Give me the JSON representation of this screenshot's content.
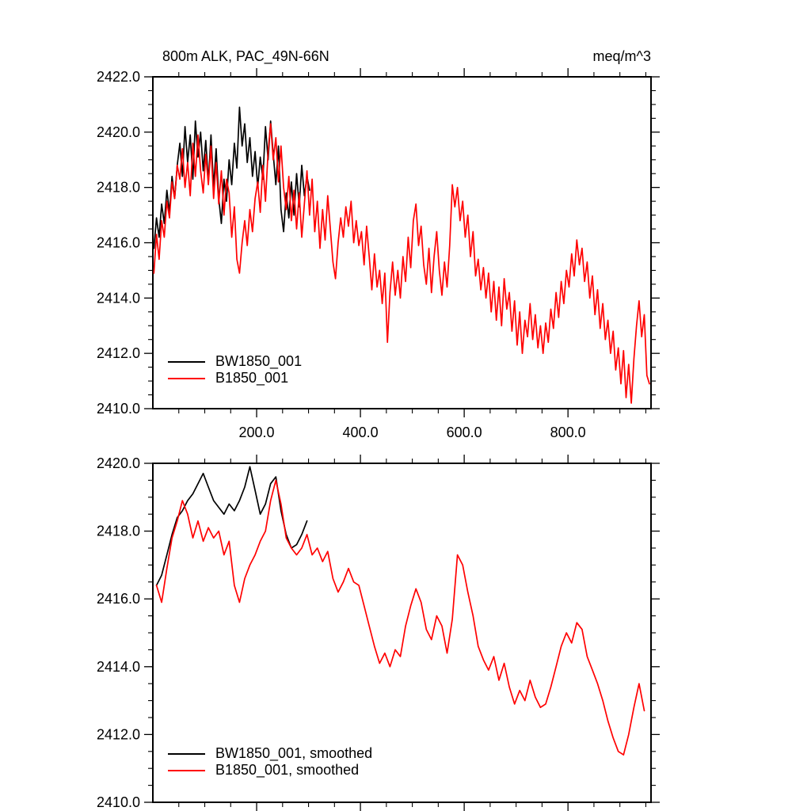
{
  "chart_data": [
    {
      "type": "line",
      "title": "800m ALK, PAC_49N-66N",
      "units_label": "meq/m^3",
      "grid": false,
      "legend_position": "lower-left-inside",
      "xlim": [
        0,
        960
      ],
      "ylim": [
        2410.0,
        2422.0
      ],
      "xticks": [
        200,
        400,
        600,
        800
      ],
      "xtick_labels": [
        "200.0",
        "400.0",
        "600.0",
        "800.0"
      ],
      "xtick_minor_step": 50,
      "ytick_step": 2.0,
      "ytick_minor_step": 0.5,
      "ytick_labels": [
        "2410.0",
        "2412.0",
        "2414.0",
        "2416.0",
        "2418.0",
        "2420.0",
        "2422.0"
      ],
      "show_x_labels": true,
      "legend": {
        "entries": [
          {
            "label": "BW1850_001",
            "color": "#000000"
          },
          {
            "label": "B1850_001",
            "color": "#ff0000"
          }
        ]
      },
      "series": [
        {
          "name": "BW1850_001",
          "color": "#000000",
          "x_start": 2,
          "x_step": 5,
          "values": [
            2415.8,
            2416.9,
            2416.2,
            2417.4,
            2416.7,
            2417.9,
            2417.1,
            2418.4,
            2417.6,
            2418.8,
            2419.6,
            2418.4,
            2420.2,
            2418.9,
            2419.9,
            2418.3,
            2420.4,
            2419.1,
            2420.0,
            2418.6,
            2419.7,
            2418.2,
            2419.9,
            2418.0,
            2419.4,
            2417.6,
            2416.7,
            2418.3,
            2417.5,
            2419.0,
            2418.1,
            2419.6,
            2418.7,
            2420.9,
            2419.5,
            2420.3,
            2418.9,
            2419.8,
            2418.4,
            2419.3,
            2418.0,
            2419.1,
            2418.3,
            2420.2,
            2419.0,
            2420.4,
            2419.2,
            2418.1,
            2419.5,
            2417.2,
            2416.4,
            2417.8,
            2416.9,
            2418.2,
            2417.0,
            2418.5,
            2417.3,
            2418.8,
            2417.7,
            2418.4,
            2417.9
          ]
        },
        {
          "name": "B1850_001",
          "color": "#ff0000",
          "x_start": 2,
          "x_step": 5,
          "values": [
            2414.9,
            2416.3,
            2415.4,
            2416.8,
            2416.2,
            2417.5,
            2416.9,
            2418.2,
            2417.6,
            2418.8,
            2418.3,
            2419.4,
            2418.0,
            2418.9,
            2417.7,
            2419.6,
            2418.4,
            2419.9,
            2418.6,
            2417.8,
            2419.2,
            2418.1,
            2419.5,
            2417.6,
            2418.9,
            2417.4,
            2418.6,
            2417.0,
            2418.3,
            2417.8,
            2416.2,
            2417.3,
            2415.4,
            2414.9,
            2416.0,
            2416.8,
            2415.9,
            2417.2,
            2416.4,
            2417.6,
            2418.2,
            2417.1,
            2418.8,
            2417.5,
            2419.3,
            2420.3,
            2419.0,
            2419.8,
            2418.2,
            2419.5,
            2418.0,
            2417.2,
            2418.4,
            2416.8,
            2417.9,
            2416.5,
            2417.8,
            2416.2,
            2417.4,
            2418.6,
            2417.0,
            2418.3,
            2416.4,
            2417.5,
            2415.8,
            2417.2,
            2416.1,
            2417.7,
            2416.5,
            2415.3,
            2414.7,
            2416.0,
            2416.9,
            2416.2,
            2417.3,
            2416.6,
            2417.5,
            2416.0,
            2416.8,
            2415.9,
            2416.4,
            2415.2,
            2416.6,
            2415.5,
            2414.3,
            2415.6,
            2414.4,
            2415.0,
            2413.8,
            2414.9,
            2412.4,
            2414.2,
            2415.3,
            2414.1,
            2415.0,
            2414.0,
            2415.5,
            2414.6,
            2416.2,
            2415.1,
            2416.8,
            2417.4,
            2415.9,
            2416.6,
            2415.2,
            2414.5,
            2415.8,
            2414.2,
            2415.5,
            2416.4,
            2415.0,
            2414.1,
            2415.3,
            2414.4,
            2415.9,
            2418.1,
            2417.3,
            2418.0,
            2416.8,
            2417.5,
            2416.2,
            2417.0,
            2415.5,
            2416.4,
            2414.8,
            2415.4,
            2414.3,
            2415.1,
            2414.0,
            2414.9,
            2413.5,
            2414.6,
            2413.2,
            2414.4,
            2413.0,
            2414.7,
            2413.6,
            2414.2,
            2412.8,
            2413.9,
            2412.3,
            2413.5,
            2412.0,
            2413.2,
            2412.6,
            2413.8,
            2412.5,
            2413.4,
            2412.2,
            2413.0,
            2412.0,
            2413.1,
            2412.4,
            2413.6,
            2412.9,
            2414.2,
            2413.3,
            2414.6,
            2413.8,
            2415.0,
            2414.4,
            2415.6,
            2414.8,
            2416.1,
            2415.2,
            2415.8,
            2414.6,
            2415.3,
            2414.0,
            2414.8,
            2413.4,
            2414.3,
            2412.9,
            2413.8,
            2412.5,
            2413.2,
            2412.0,
            2412.8,
            2411.4,
            2412.2,
            2410.9,
            2412.1,
            2410.4,
            2411.6,
            2410.2,
            2411.8,
            2413.0,
            2413.9,
            2412.6,
            2413.4,
            2411.2,
            2410.9
          ]
        }
      ]
    },
    {
      "type": "line",
      "grid": false,
      "legend_position": "lower-left-inside",
      "xlim": [
        0,
        960
      ],
      "ylim": [
        2410.0,
        2420.0
      ],
      "xticks": [
        200,
        400,
        600,
        800
      ],
      "xtick_minor_step": 50,
      "ytick_step": 2.0,
      "ytick_minor_step": 0.5,
      "ytick_labels": [
        "2410.0",
        "2412.0",
        "2414.0",
        "2416.0",
        "2418.0",
        "2420.0"
      ],
      "show_x_labels": false,
      "legend": {
        "entries": [
          {
            "label": "BW1850_001, smoothed",
            "color": "#000000"
          },
          {
            "label": "B1850_001, smoothed",
            "color": "#ff0000"
          }
        ]
      },
      "series": [
        {
          "name": "BW1850_001, smoothed",
          "color": "#000000",
          "x_start": 7,
          "x_step": 10,
          "values": [
            2416.4,
            2416.7,
            2417.3,
            2417.9,
            2418.4,
            2418.6,
            2418.9,
            2419.1,
            2419.4,
            2419.7,
            2419.3,
            2418.9,
            2418.7,
            2418.5,
            2418.8,
            2418.6,
            2418.9,
            2419.3,
            2419.9,
            2419.2,
            2418.5,
            2418.8,
            2419.4,
            2419.6,
            2418.6,
            2417.9,
            2417.5,
            2417.6,
            2417.9,
            2418.3
          ]
        },
        {
          "name": "B1850_001, smoothed",
          "color": "#ff0000",
          "x_start": 7,
          "x_step": 10,
          "values": [
            2416.4,
            2415.9,
            2416.9,
            2417.8,
            2418.3,
            2418.9,
            2418.5,
            2417.8,
            2418.3,
            2417.7,
            2418.1,
            2417.8,
            2418.0,
            2417.3,
            2417.7,
            2416.4,
            2415.9,
            2416.6,
            2417.0,
            2417.3,
            2417.7,
            2418.0,
            2418.9,
            2419.5,
            2418.8,
            2417.8,
            2417.5,
            2417.3,
            2417.5,
            2417.9,
            2417.3,
            2417.5,
            2417.1,
            2417.4,
            2416.6,
            2416.2,
            2416.5,
            2416.9,
            2416.5,
            2416.4,
            2415.8,
            2415.2,
            2414.6,
            2414.1,
            2414.4,
            2414.0,
            2414.5,
            2414.3,
            2415.2,
            2415.8,
            2416.3,
            2415.9,
            2415.1,
            2414.8,
            2415.5,
            2415.2,
            2414.4,
            2415.4,
            2417.3,
            2417.0,
            2416.2,
            2415.5,
            2414.6,
            2414.2,
            2413.9,
            2414.3,
            2413.6,
            2414.1,
            2413.4,
            2412.9,
            2413.3,
            2413.0,
            2413.6,
            2413.1,
            2412.8,
            2412.9,
            2413.4,
            2414.0,
            2414.6,
            2415.0,
            2414.7,
            2415.3,
            2415.1,
            2414.3,
            2413.9,
            2413.5,
            2413.0,
            2412.4,
            2411.9,
            2411.5,
            2411.4,
            2412.0,
            2412.8,
            2413.5,
            2412.7
          ]
        }
      ]
    }
  ]
}
